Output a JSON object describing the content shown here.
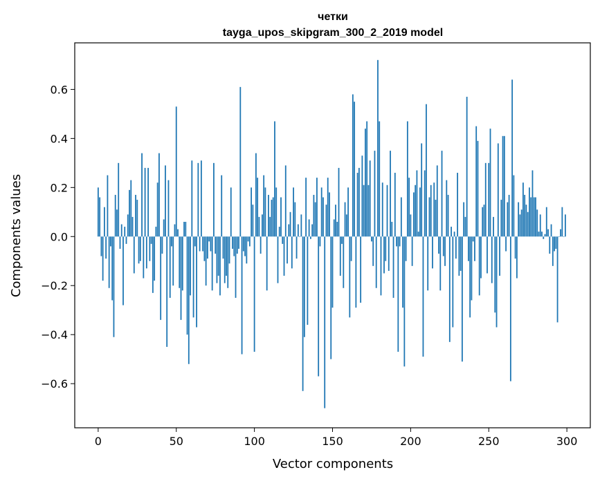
{
  "chart_data": {
    "type": "bar",
    "title": "четки",
    "subtitle": "tayga_upos_skipgram_300_2_2019 model",
    "xlabel": "Vector components",
    "ylabel": "Components values",
    "xlim": [
      -15,
      315
    ],
    "ylim": [
      -0.78,
      0.79
    ],
    "xticks": [
      0,
      50,
      100,
      150,
      200,
      250,
      300
    ],
    "xtick_labels": [
      "0",
      "50",
      "100",
      "150",
      "200",
      "250",
      "300"
    ],
    "yticks": [
      -0.6,
      -0.4,
      -0.2,
      0.0,
      0.2,
      0.4,
      0.6
    ],
    "ytick_labels": [
      "−0.6",
      "−0.4",
      "−0.2",
      "0.0",
      "0.2",
      "0.4",
      "0.6"
    ],
    "bar_color": "#1f77b4",
    "series": [
      {
        "name": "четки",
        "values": [
          0.2,
          0.16,
          -0.08,
          -0.18,
          0.12,
          -0.09,
          0.25,
          -0.21,
          -0.04,
          -0.26,
          -0.41,
          0.17,
          0.11,
          0.3,
          -0.05,
          0.05,
          -0.28,
          0.04,
          -0.03,
          0.09,
          0.19,
          0.23,
          0.08,
          -0.15,
          0.17,
          0.15,
          -0.11,
          -0.1,
          0.34,
          -0.17,
          0.28,
          -0.13,
          0.28,
          -0.1,
          -0.03,
          -0.23,
          -0.18,
          0.04,
          0.22,
          0.34,
          -0.34,
          -0.07,
          0.07,
          0.29,
          -0.45,
          0.23,
          -0.25,
          -0.04,
          -0.2,
          0.05,
          0.53,
          0.03,
          -0.21,
          -0.34,
          -0.22,
          0.06,
          0.06,
          -0.4,
          -0.52,
          -0.24,
          0.31,
          -0.33,
          -0.04,
          -0.37,
          0.3,
          -0.06,
          0.31,
          -0.06,
          -0.1,
          -0.2,
          -0.09,
          -0.02,
          -0.06,
          -0.22,
          0.3,
          -0.07,
          -0.19,
          -0.16,
          -0.24,
          0.25,
          -0.09,
          -0.19,
          -0.16,
          -0.21,
          -0.11,
          0.2,
          -0.05,
          -0.08,
          -0.25,
          -0.07,
          -0.05,
          0.61,
          -0.48,
          -0.06,
          -0.08,
          -0.11,
          -0.02,
          -0.04,
          0.2,
          0.13,
          -0.47,
          0.34,
          0.24,
          0.08,
          -0.07,
          0.09,
          0.25,
          0.2,
          -0.22,
          0.17,
          0.08,
          0.15,
          0.16,
          0.47,
          0.2,
          -0.19,
          0.04,
          0.16,
          -0.03,
          -0.16,
          0.29,
          -0.11,
          0.05,
          0.1,
          -0.13,
          0.2,
          0.14,
          -0.09,
          0.05,
          0.0,
          0.09,
          -0.63,
          -0.41,
          0.24,
          -0.36,
          0.07,
          -0.01,
          0.05,
          0.17,
          0.14,
          0.24,
          -0.57,
          -0.04,
          0.2,
          0.16,
          -0.7,
          0.13,
          0.24,
          0.18,
          -0.5,
          -0.29,
          0.07,
          0.13,
          0.06,
          0.28,
          -0.16,
          -0.03,
          -0.21,
          0.14,
          0.09,
          0.2,
          -0.33,
          -0.1,
          0.58,
          0.55,
          -0.29,
          0.26,
          0.28,
          -0.27,
          0.33,
          0.21,
          0.44,
          0.47,
          0.21,
          0.31,
          -0.02,
          -0.12,
          0.35,
          -0.21,
          0.72,
          0.47,
          -0.24,
          0.22,
          -0.15,
          -0.1,
          0.21,
          -0.14,
          0.35,
          0.06,
          -0.25,
          0.26,
          -0.04,
          -0.47,
          -0.04,
          0.16,
          -0.29,
          -0.53,
          -0.1,
          0.47,
          0.24,
          0.09,
          -0.12,
          0.18,
          0.21,
          0.27,
          0.02,
          0.2,
          0.38,
          -0.49,
          0.27,
          0.54,
          -0.22,
          0.16,
          0.21,
          -0.13,
          0.22,
          0.15,
          0.29,
          -0.07,
          -0.22,
          0.35,
          -0.08,
          -0.12,
          0.23,
          0.17,
          -0.43,
          0.04,
          -0.37,
          0.02,
          -0.09,
          0.26,
          -0.16,
          -0.14,
          -0.51,
          0.14,
          0.08,
          0.57,
          -0.1,
          -0.33,
          -0.26,
          -0.02,
          -0.1,
          0.45,
          0.39,
          -0.24,
          -0.17,
          0.12,
          0.13,
          0.3,
          -0.15,
          0.3,
          0.44,
          -0.19,
          0.08,
          -0.31,
          -0.37,
          0.38,
          -0.16,
          0.15,
          0.41,
          0.41,
          -0.06,
          0.14,
          0.17,
          -0.59,
          0.64,
          0.25,
          -0.09,
          -0.17,
          0.14,
          0.09,
          0.11,
          0.22,
          0.17,
          0.13,
          0.1,
          0.2,
          0.16,
          0.27,
          0.16,
          0.16,
          0.11,
          0.02,
          0.09,
          0.02,
          -0.01,
          0.01,
          0.12,
          0.03,
          -0.07,
          0.05,
          -0.12,
          -0.06,
          -0.05,
          -0.35,
          0.0,
          0.03,
          0.12,
          0.0,
          0.09
        ]
      }
    ]
  }
}
